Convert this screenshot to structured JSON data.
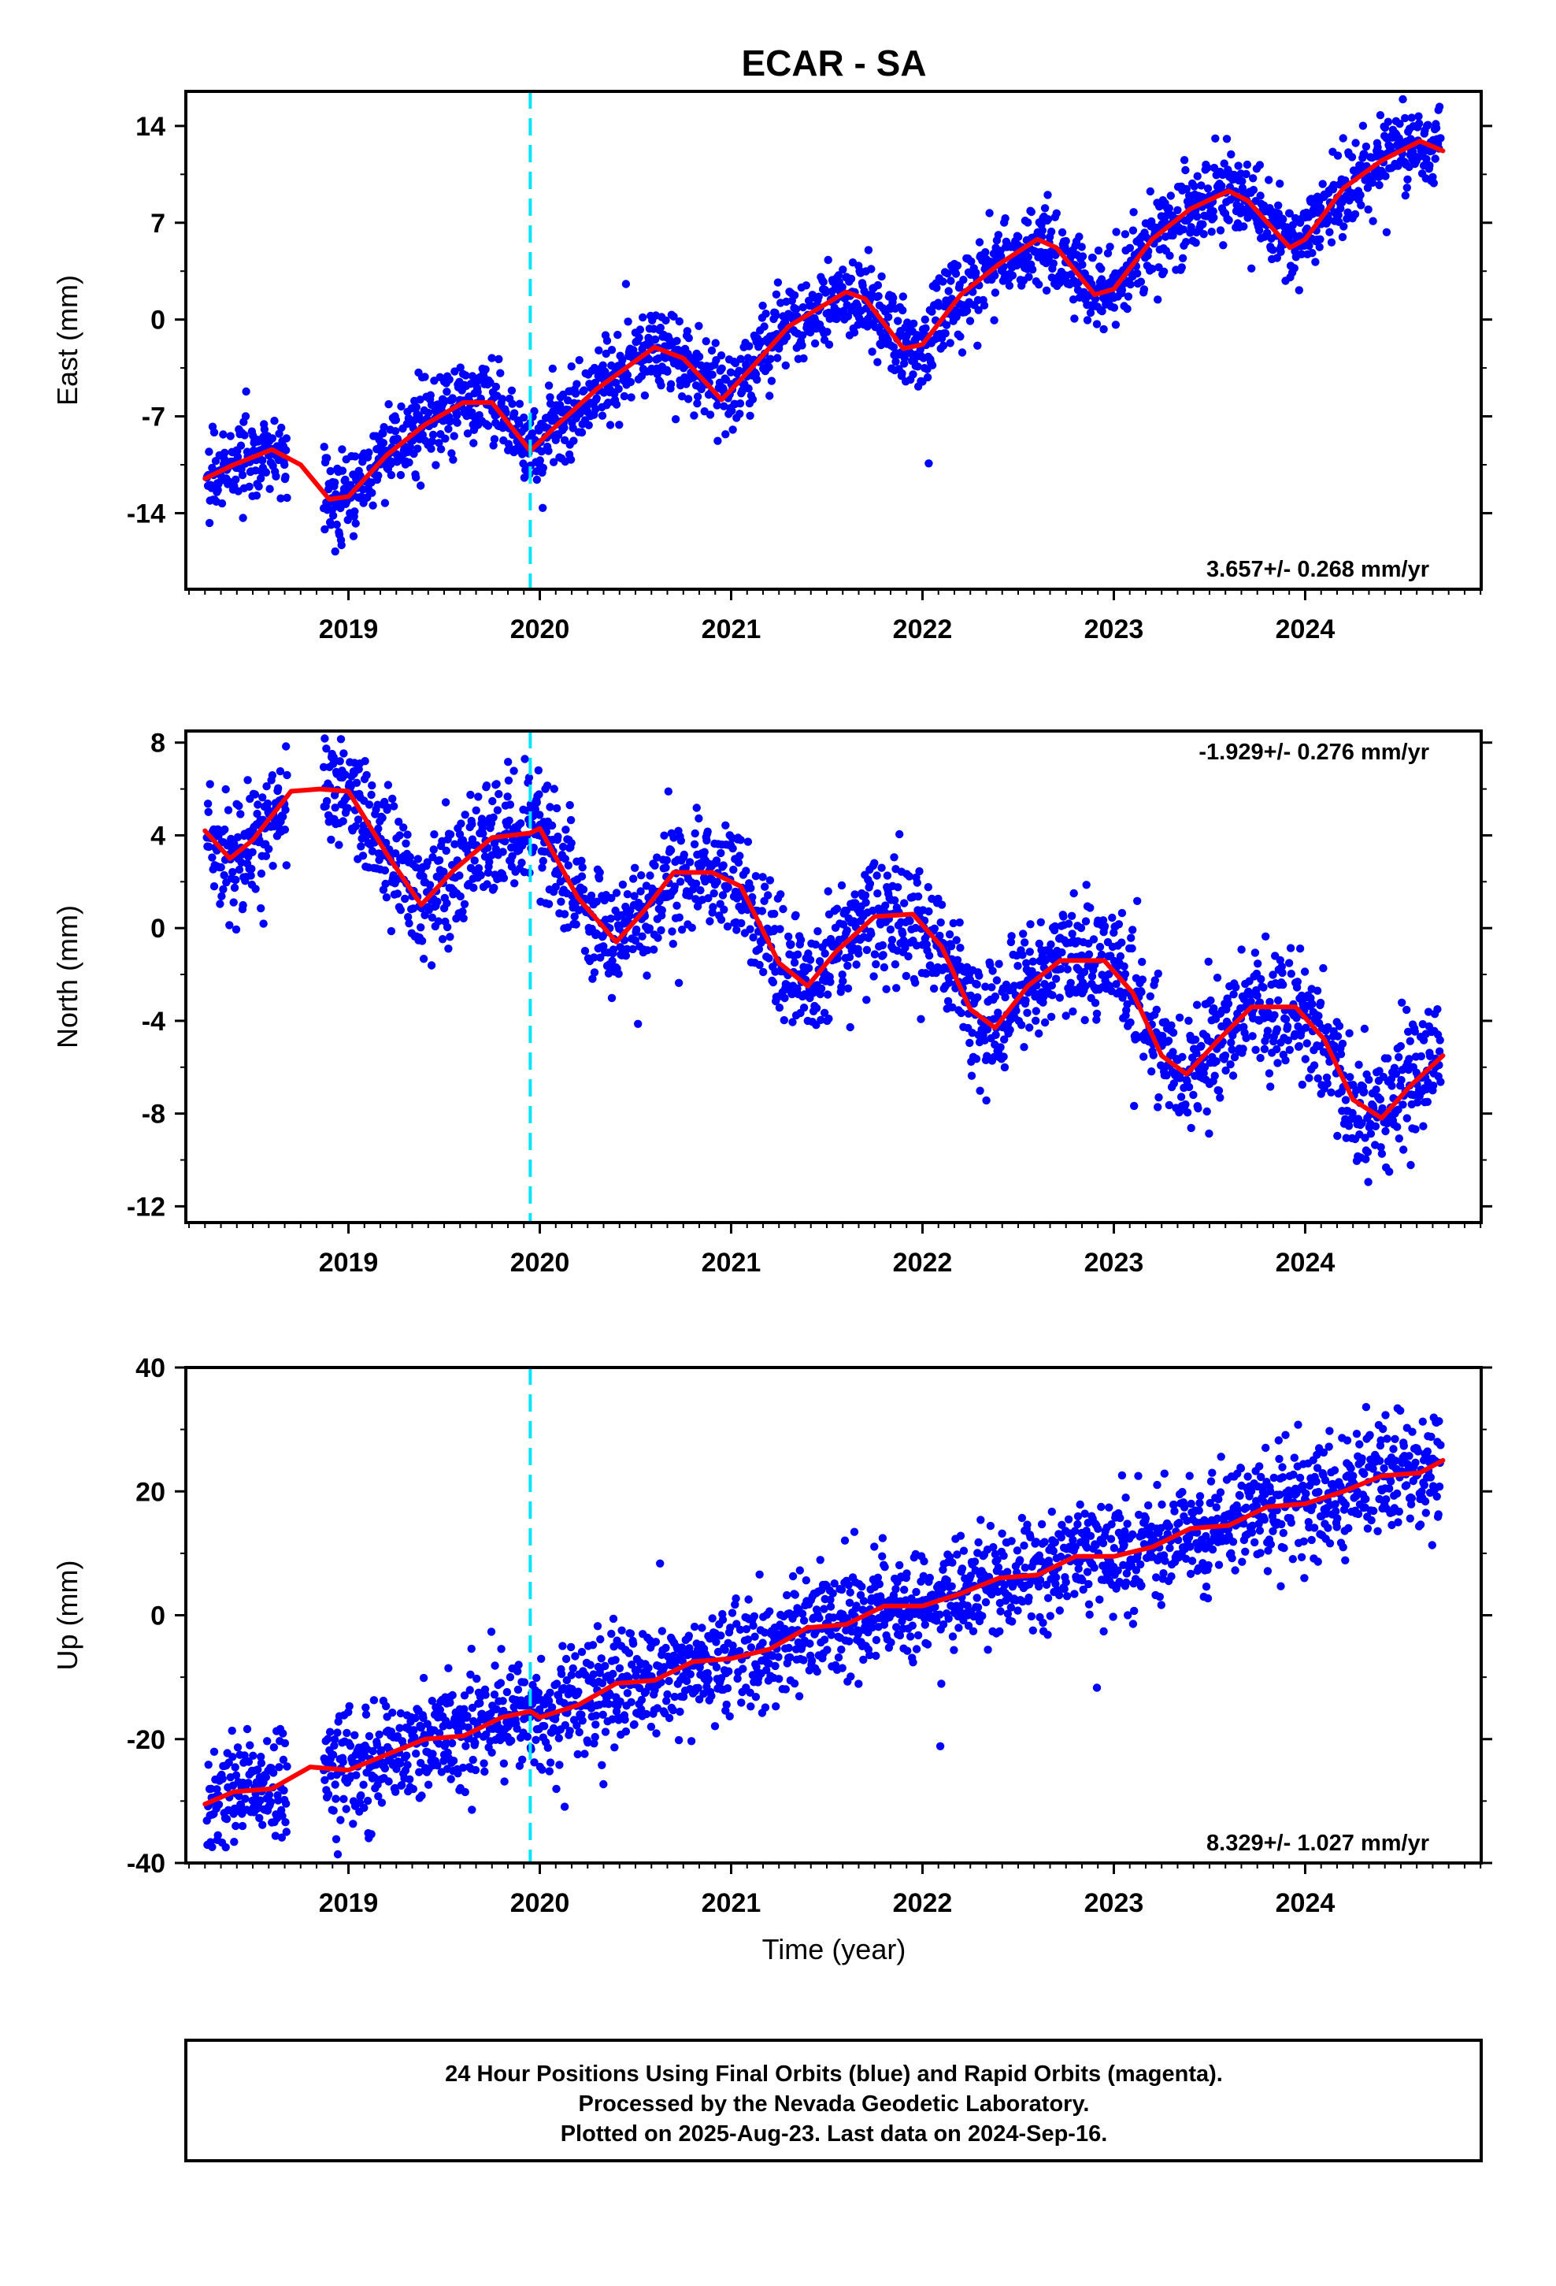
{
  "title": "ECAR - SA",
  "colors": {
    "final_orbits": "#0000ff",
    "fit_line": "#ff0000",
    "equipment_change": "#00e5ff",
    "frame": "#000000"
  },
  "x_axis": {
    "label": "Time (year)",
    "range": [
      2018.15,
      2024.92
    ],
    "ticks": [
      2019,
      2020,
      2021,
      2022,
      2023,
      2024
    ],
    "tick_labels": [
      "2019",
      "2020",
      "2021",
      "2022",
      "2023",
      "2024"
    ]
  },
  "equipment_change_year": 2019.95,
  "footer": {
    "line1": "24 Hour Positions Using Final Orbits (blue) and Rapid Orbits (magenta).",
    "line2": "Processed by the Nevada Geodetic Laboratory.",
    "line3": "Plotted on 2025-Aug-23. Last data on 2024-Sep-16."
  },
  "chart_data": [
    {
      "type": "scatter",
      "component": "east",
      "ylabel": "East (mm)",
      "ylim": [
        -19.5,
        16.5
      ],
      "yticks": [
        -14,
        -7,
        0,
        7,
        14
      ],
      "ytick_labels": [
        "-14",
        "-7",
        "0",
        "7",
        "14"
      ],
      "rate_label": "3.657+/- 0.268 mm/yr",
      "rate_position": "bottom-right",
      "trend_mm_per_yr": 3.657,
      "scatter_sd_mm": 1.5,
      "data_gap": [
        2018.68,
        2018.87
      ],
      "fit_curve": [
        [
          2018.25,
          -11.5
        ],
        [
          2018.4,
          -10.5
        ],
        [
          2018.6,
          -9.4
        ],
        [
          2018.75,
          -10.5
        ],
        [
          2018.9,
          -13.0
        ],
        [
          2019.0,
          -12.8
        ],
        [
          2019.2,
          -9.8
        ],
        [
          2019.4,
          -7.6
        ],
        [
          2019.6,
          -6.0
        ],
        [
          2019.75,
          -6.0
        ],
        [
          2019.95,
          -9.5
        ],
        [
          2020.1,
          -7.5
        ],
        [
          2020.3,
          -5.0
        ],
        [
          2020.6,
          -2.0
        ],
        [
          2020.75,
          -2.8
        ],
        [
          2020.95,
          -5.8
        ],
        [
          2021.1,
          -3.6
        ],
        [
          2021.3,
          -0.5
        ],
        [
          2021.6,
          2.0
        ],
        [
          2021.7,
          1.5
        ],
        [
          2021.9,
          -2.1
        ],
        [
          2022.0,
          -1.8
        ],
        [
          2022.2,
          1.8
        ],
        [
          2022.4,
          4.0
        ],
        [
          2022.6,
          5.8
        ],
        [
          2022.7,
          5.2
        ],
        [
          2022.9,
          1.8
        ],
        [
          2023.0,
          2.2
        ],
        [
          2023.2,
          5.8
        ],
        [
          2023.4,
          8.0
        ],
        [
          2023.6,
          9.3
        ],
        [
          2023.7,
          8.6
        ],
        [
          2023.92,
          5.2
        ],
        [
          2024.0,
          5.8
        ],
        [
          2024.2,
          9.5
        ],
        [
          2024.4,
          11.5
        ],
        [
          2024.6,
          12.9
        ],
        [
          2024.72,
          12.2
        ]
      ]
    },
    {
      "type": "scatter",
      "component": "north",
      "ylabel": "North (mm)",
      "ylim": [
        -12.7,
        8.5
      ],
      "yticks": [
        -12,
        -8,
        -4,
        0,
        4,
        8
      ],
      "ytick_labels": [
        "-12",
        "-8",
        "-4",
        "0",
        "4",
        "8"
      ],
      "rate_label": "-1.929+/- 0.276 mm/yr",
      "rate_position": "top-right",
      "trend_mm_per_yr": -1.929,
      "scatter_sd_mm": 1.3,
      "data_gap": [
        2018.68,
        2018.87
      ],
      "fit_curve": [
        [
          2018.25,
          4.2
        ],
        [
          2018.38,
          3.0
        ],
        [
          2018.5,
          3.8
        ],
        [
          2018.7,
          5.9
        ],
        [
          2018.85,
          6.0
        ],
        [
          2019.0,
          5.9
        ],
        [
          2019.2,
          3.2
        ],
        [
          2019.38,
          1.0
        ],
        [
          2019.55,
          2.5
        ],
        [
          2019.75,
          3.9
        ],
        [
          2019.95,
          4.1
        ],
        [
          2020.0,
          4.3
        ],
        [
          2020.2,
          1.3
        ],
        [
          2020.4,
          -0.6
        ],
        [
          2020.55,
          0.8
        ],
        [
          2020.7,
          2.4
        ],
        [
          2020.9,
          2.4
        ],
        [
          2021.05,
          1.8
        ],
        [
          2021.25,
          -1.5
        ],
        [
          2021.4,
          -2.5
        ],
        [
          2021.55,
          -1.0
        ],
        [
          2021.75,
          0.5
        ],
        [
          2021.95,
          0.6
        ],
        [
          2022.1,
          -0.8
        ],
        [
          2022.25,
          -3.5
        ],
        [
          2022.38,
          -4.3
        ],
        [
          2022.55,
          -2.5
        ],
        [
          2022.72,
          -1.4
        ],
        [
          2022.95,
          -1.4
        ],
        [
          2023.1,
          -2.8
        ],
        [
          2023.25,
          -5.5
        ],
        [
          2023.38,
          -6.3
        ],
        [
          2023.55,
          -4.8
        ],
        [
          2023.72,
          -3.4
        ],
        [
          2023.95,
          -3.4
        ],
        [
          2024.1,
          -4.8
        ],
        [
          2024.25,
          -7.4
        ],
        [
          2024.4,
          -8.2
        ],
        [
          2024.55,
          -6.8
        ],
        [
          2024.72,
          -5.5
        ]
      ]
    },
    {
      "type": "scatter",
      "component": "up",
      "ylabel": "Up (mm)",
      "ylim": [
        -40,
        40
      ],
      "yticks": [
        -40,
        -20,
        0,
        20,
        40
      ],
      "ytick_labels": [
        "-40",
        "-20",
        "0",
        "20",
        "40"
      ],
      "rate_label": "8.329+/- 1.027 mm/yr",
      "rate_position": "bottom-right",
      "trend_mm_per_yr": 8.329,
      "scatter_sd_mm": 4.5,
      "data_gap": [
        2018.68,
        2018.87
      ],
      "fit_curve": [
        [
          2018.25,
          -30.5
        ],
        [
          2018.4,
          -28.5
        ],
        [
          2018.6,
          -28.0
        ],
        [
          2018.8,
          -24.5
        ],
        [
          2019.0,
          -25.0
        ],
        [
          2019.2,
          -22.5
        ],
        [
          2019.4,
          -20.0
        ],
        [
          2019.6,
          -19.5
        ],
        [
          2019.8,
          -16.5
        ],
        [
          2019.95,
          -15.5
        ],
        [
          2020.0,
          -16.5
        ],
        [
          2020.2,
          -14.5
        ],
        [
          2020.4,
          -11.0
        ],
        [
          2020.6,
          -10.5
        ],
        [
          2020.8,
          -7.5
        ],
        [
          2021.0,
          -7.0
        ],
        [
          2021.2,
          -5.5
        ],
        [
          2021.4,
          -2.0
        ],
        [
          2021.6,
          -1.5
        ],
        [
          2021.8,
          1.5
        ],
        [
          2022.0,
          1.5
        ],
        [
          2022.2,
          3.5
        ],
        [
          2022.4,
          6.0
        ],
        [
          2022.6,
          6.5
        ],
        [
          2022.8,
          9.5
        ],
        [
          2023.0,
          9.5
        ],
        [
          2023.2,
          11.0
        ],
        [
          2023.4,
          14.0
        ],
        [
          2023.6,
          14.5
        ],
        [
          2023.8,
          17.5
        ],
        [
          2024.0,
          18.0
        ],
        [
          2024.2,
          20.0
        ],
        [
          2024.4,
          22.5
        ],
        [
          2024.6,
          23.0
        ],
        [
          2024.72,
          25.0
        ]
      ]
    }
  ]
}
